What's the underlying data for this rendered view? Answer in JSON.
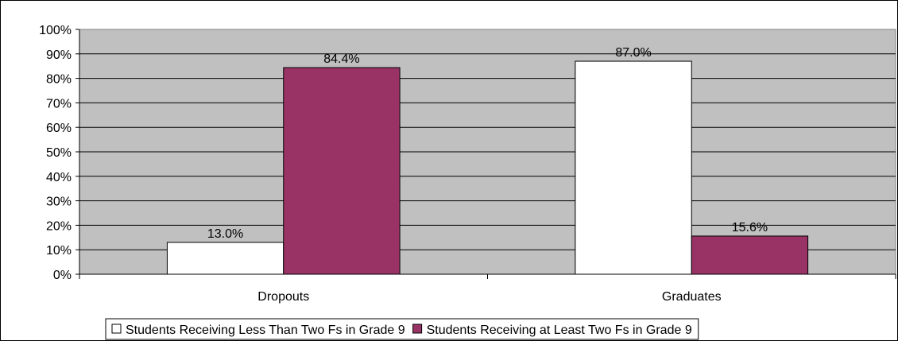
{
  "chart_data": {
    "type": "bar",
    "categories": [
      "Dropouts",
      "Graduates"
    ],
    "series": [
      {
        "name": "Students Receiving Less Than Two Fs in Grade 9",
        "values": [
          13.0,
          87.0
        ],
        "color": "#ffffff"
      },
      {
        "name": "Students Receiving at Least Two Fs in Grade 9",
        "values": [
          84.4,
          15.6
        ],
        "color": "#993366"
      }
    ],
    "data_labels": [
      [
        "13.0%",
        "87.0%"
      ],
      [
        "84.4%",
        "15.6%"
      ]
    ],
    "y_ticks": [
      "0%",
      "10%",
      "20%",
      "30%",
      "40%",
      "50%",
      "60%",
      "70%",
      "80%",
      "90%",
      "100%"
    ],
    "ylim": [
      0,
      100
    ],
    "grid": true,
    "plot_background": "#c0c0c0",
    "legend_position": "bottom",
    "title": "",
    "xlabel": "",
    "ylabel": ""
  }
}
